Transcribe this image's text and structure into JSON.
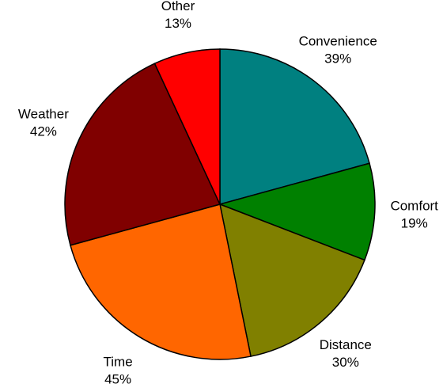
{
  "chart_data": {
    "type": "pie",
    "slices": [
      {
        "label": "Convenience",
        "value": 39,
        "value_label": "39%",
        "color": "#008080"
      },
      {
        "label": "Comfort",
        "value": 19,
        "value_label": "19%",
        "color": "#008000"
      },
      {
        "label": "Distance",
        "value": 30,
        "value_label": "30%",
        "color": "#808000"
      },
      {
        "label": "Time",
        "value": 45,
        "value_label": "45%",
        "color": "#FF6600"
      },
      {
        "label": "Weather",
        "value": 42,
        "value_label": "42%",
        "color": "#800000"
      },
      {
        "label": "Other",
        "value": 13,
        "value_label": "13%",
        "color": "#FF0000"
      }
    ],
    "start_angle": "12 o'clock",
    "direction": "clockwise",
    "legend": "none",
    "labels": "outside, category above percentage"
  }
}
